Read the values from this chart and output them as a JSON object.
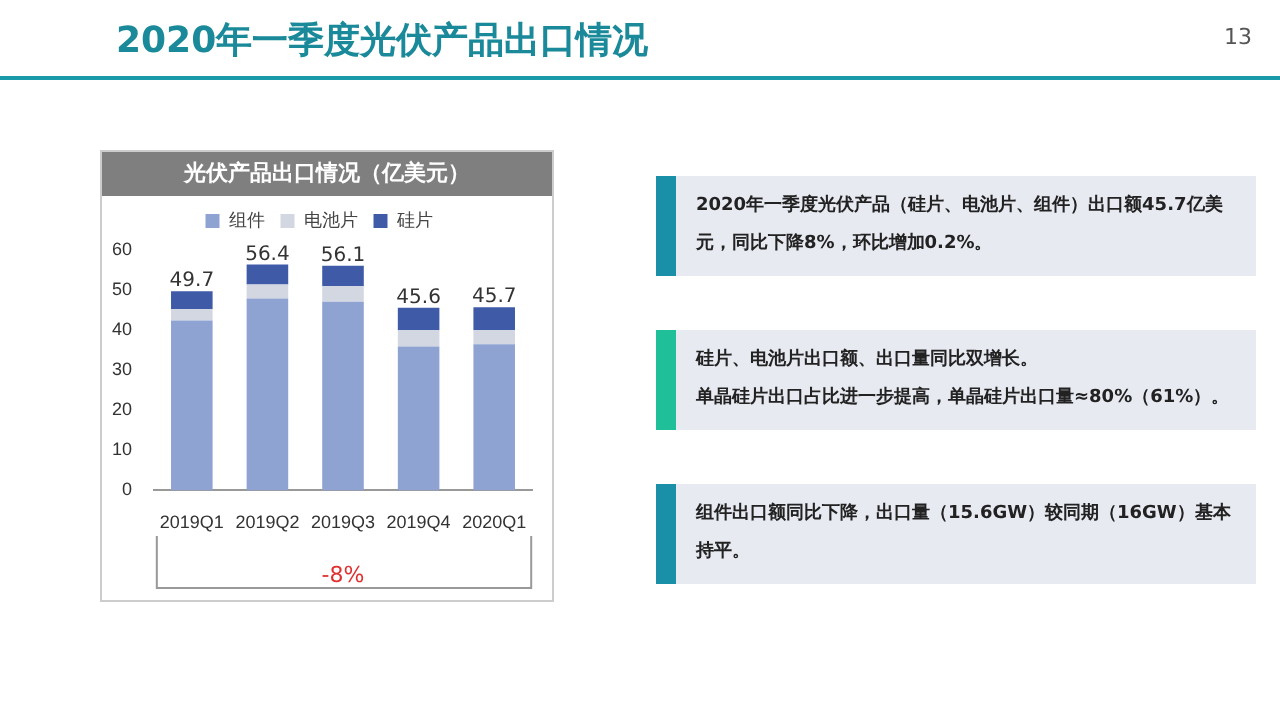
{
  "chart_data": [
    {
      "type": "bar",
      "title": "光伏产品出口情况（亿美元）",
      "stacked": true,
      "legend": "top",
      "grid": false,
      "categories": [
        "2019Q1",
        "2019Q2",
        "2019Q3",
        "2019Q4",
        "2020Q1"
      ],
      "series": [
        {
          "name": "组件",
          "color": "#8fa3d3",
          "values": [
            42.4,
            47.9,
            47.1,
            35.9,
            36.5
          ]
        },
        {
          "name": "电池片",
          "color": "#d3d7e2",
          "values": [
            2.9,
            3.5,
            3.9,
            4.1,
            3.5
          ]
        },
        {
          "name": "硅片",
          "color": "#3f5ba8",
          "values": [
            4.4,
            5.0,
            5.1,
            5.6,
            5.7
          ]
        }
      ],
      "totals": [
        "49.7",
        "56.4",
        "56.1",
        "45.6",
        "45.7"
      ],
      "ylim": [
        0,
        60
      ],
      "yticks": [
        0,
        10,
        20,
        30,
        40,
        50,
        60
      ],
      "annotations": [
        "-8%"
      ]
    },
    {
      "type": "other",
      "title": "2020年一季度光伏产品出口情况",
      "annotations": [
        "13",
        "2020年一季度光伏产品（硅片、电池片、组件）出口额45.7亿美元，同比下降8%，环比增加0.2%。",
        "硅片、电池片出口额、出口量同比双增长。",
        "单晶硅片出口占比进一步提高，单晶硅片出口量≈80%（61%）。",
        "组件出口额同比下降，出口量（15.6GW）较同期（16GW）基本持平。"
      ]
    }
  ]
}
